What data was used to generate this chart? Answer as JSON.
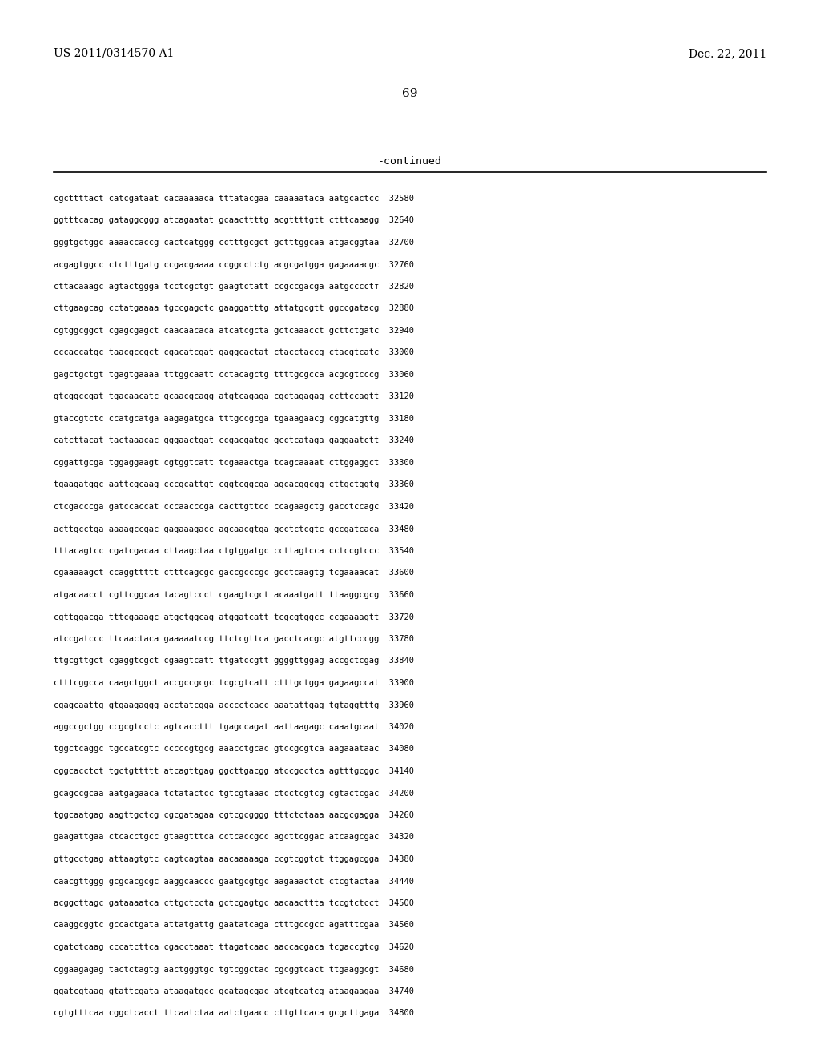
{
  "header_left": "US 2011/0314570 A1",
  "header_right": "Dec. 22, 2011",
  "page_number": "69",
  "continued_label": "-continued",
  "background_color": "#ffffff",
  "text_color": "#000000",
  "lines": [
    "cgcttttact catcgataat cacaaaaaca tttatacgaa caaaaataca aatgcactcc  32580",
    "ggtttcacag gataggcggg atcagaatat gcaacttttg acgttttgtt ctttcaaagg  32640",
    "gggtgctggc aaaaccaccg cactcatggg cctttgcgct gctttggcaa atgacggtaa  32700",
    "acgagtggcc ctctttgatg ccgacgaaaa ccggcctctg acgcgatgga gagaaaacgc  32760",
    "cttacaaagc agtactggga tcctcgctgt gaagtctatt ccgccgacga aatgcccctт  32820",
    "cttgaagcag cctatgaaaa tgccgagctc gaaggatttg attatgcgtt ggccgatacg  32880",
    "cgtggcggct cgagcgagct caacaacaca atcatcgcta gctcaaacct gcttctgatc  32940",
    "cccaccatgc taacgccgct cgacatcgat gaggcactat ctacctaccg ctacgtcatc  33000",
    "gagctgctgt tgagtgaaaa tttggcaatt cctacagctg ttttgcgcca acgcgtcccg  33060",
    "gtcggccgat tgacaacatc gcaacgcagg atgtcagaga cgctagagag ccttccagtt  33120",
    "gtaccgtctc ccatgcatga aagagatgca tttgccgcga tgaaagaacg cggcatgttg  33180",
    "catcttacat tactaaacac gggaactgat ccgacgatgc gcctcataga gaggaatctt  33240",
    "cggattgcga tggaggaagt cgtggtcatt tcgaaactga tcagcaaaat cttggaggct  33300",
    "tgaagatggc aattcgcaag cccgcattgt cggtcggcga agcacggcgg cttgctggtg  33360",
    "ctcgacccga gatccaccat cccaacccga cacttgttcc ccagaagctg gacctccagc  33420",
    "acttgcctga aaaagccgac gagaaagacc agcaacgtga gcctctcgtc gccgatcaca  33480",
    "tttacagtcc cgatcgacaa cttaagctaa ctgtggatgc ccttagtcca cctccgtccc  33540",
    "cgaaaaagct ccaggttttt ctttcagcgc gaccgcccgc gcctcaagtg tcgaaaacat  33600",
    "atgacaacct cgttcggcaa tacagtccct cgaagtcgct acaaatgatt ttaaggcgcg  33660",
    "cgttggacga tttcgaaagc atgctggcag atggatcatt tcgcgtggcc ccgaaaagtt  33720",
    "atccgatccc ttcaactaca gaaaaatccg ttctcgttca gacctcacgc atgttcccgg  33780",
    "ttgcgttgct cgaggtcgct cgaagtcatt ttgatccgtt ggggttggag accgctcgag  33840",
    "ctttcggcca caagctggct accgccgcgc tcgcgtcatt ctttgctgga gagaagccat  33900",
    "cgagcaattg gtgaagaggg acctatcgga acccctcacc aaatattgag tgtaggtttg  33960",
    "aggccgctgg ccgcgtcctc agtcaccttt tgagccagat aattaagagc caaatgcaat  34020",
    "tggctcaggc tgccatcgtc cccccgtgcg aaacctgcac gtccgcgtca aagaaataac  34080",
    "cggcacctct tgctgttttt atcagttgag ggcttgacgg atccgcctca agtttgcggc  34140",
    "gcagccgcaa aatgagaaca tctatactcc tgtcgtaaac ctcctcgtcg cgtactcgac  34200",
    "tggcaatgag aagttgctcg cgcgatagaa cgtcgcgggg tttctctaaa aacgcgagga  34260",
    "gaagattgaa ctcacctgcc gtaagtttca cctcaccgcc agcttcggac atcaagcgac  34320",
    "gttgcctgag attaagtgtc cagtcagtaa aacaaaaaga ccgtcggtct ttggagcgga  34380",
    "caacgttggg gcgcacgcgc aaggcaaccc gaatgcgtgc aagaaactct ctcgtactaa  34440",
    "acggcttagc gataaaatca cttgctccta gctcgagtgc aacaacttta tccgtctcct  34500",
    "caaggcggtc gccactgata attatgattg gaatatcaga ctttgccgcc agatttcgaa  34560",
    "cgatctcaag cccatcttca cgacctaaat ttagatcaac aaccacgaca tcgaccgtcg  34620",
    "cggaagagag tactctagtg aactgggtgc tgtcggctac cgcggtcact ttgaaggcgt  34680",
    "ggatcgtaag gtattcgata ataagatgcc gcatagcgac atcgtcatcg ataagaagaa  34740",
    "cgtgtttcaa cggctcacct ttcaatctaa aatctgaacc cttgttcaca gcgcttgaga  34800"
  ]
}
